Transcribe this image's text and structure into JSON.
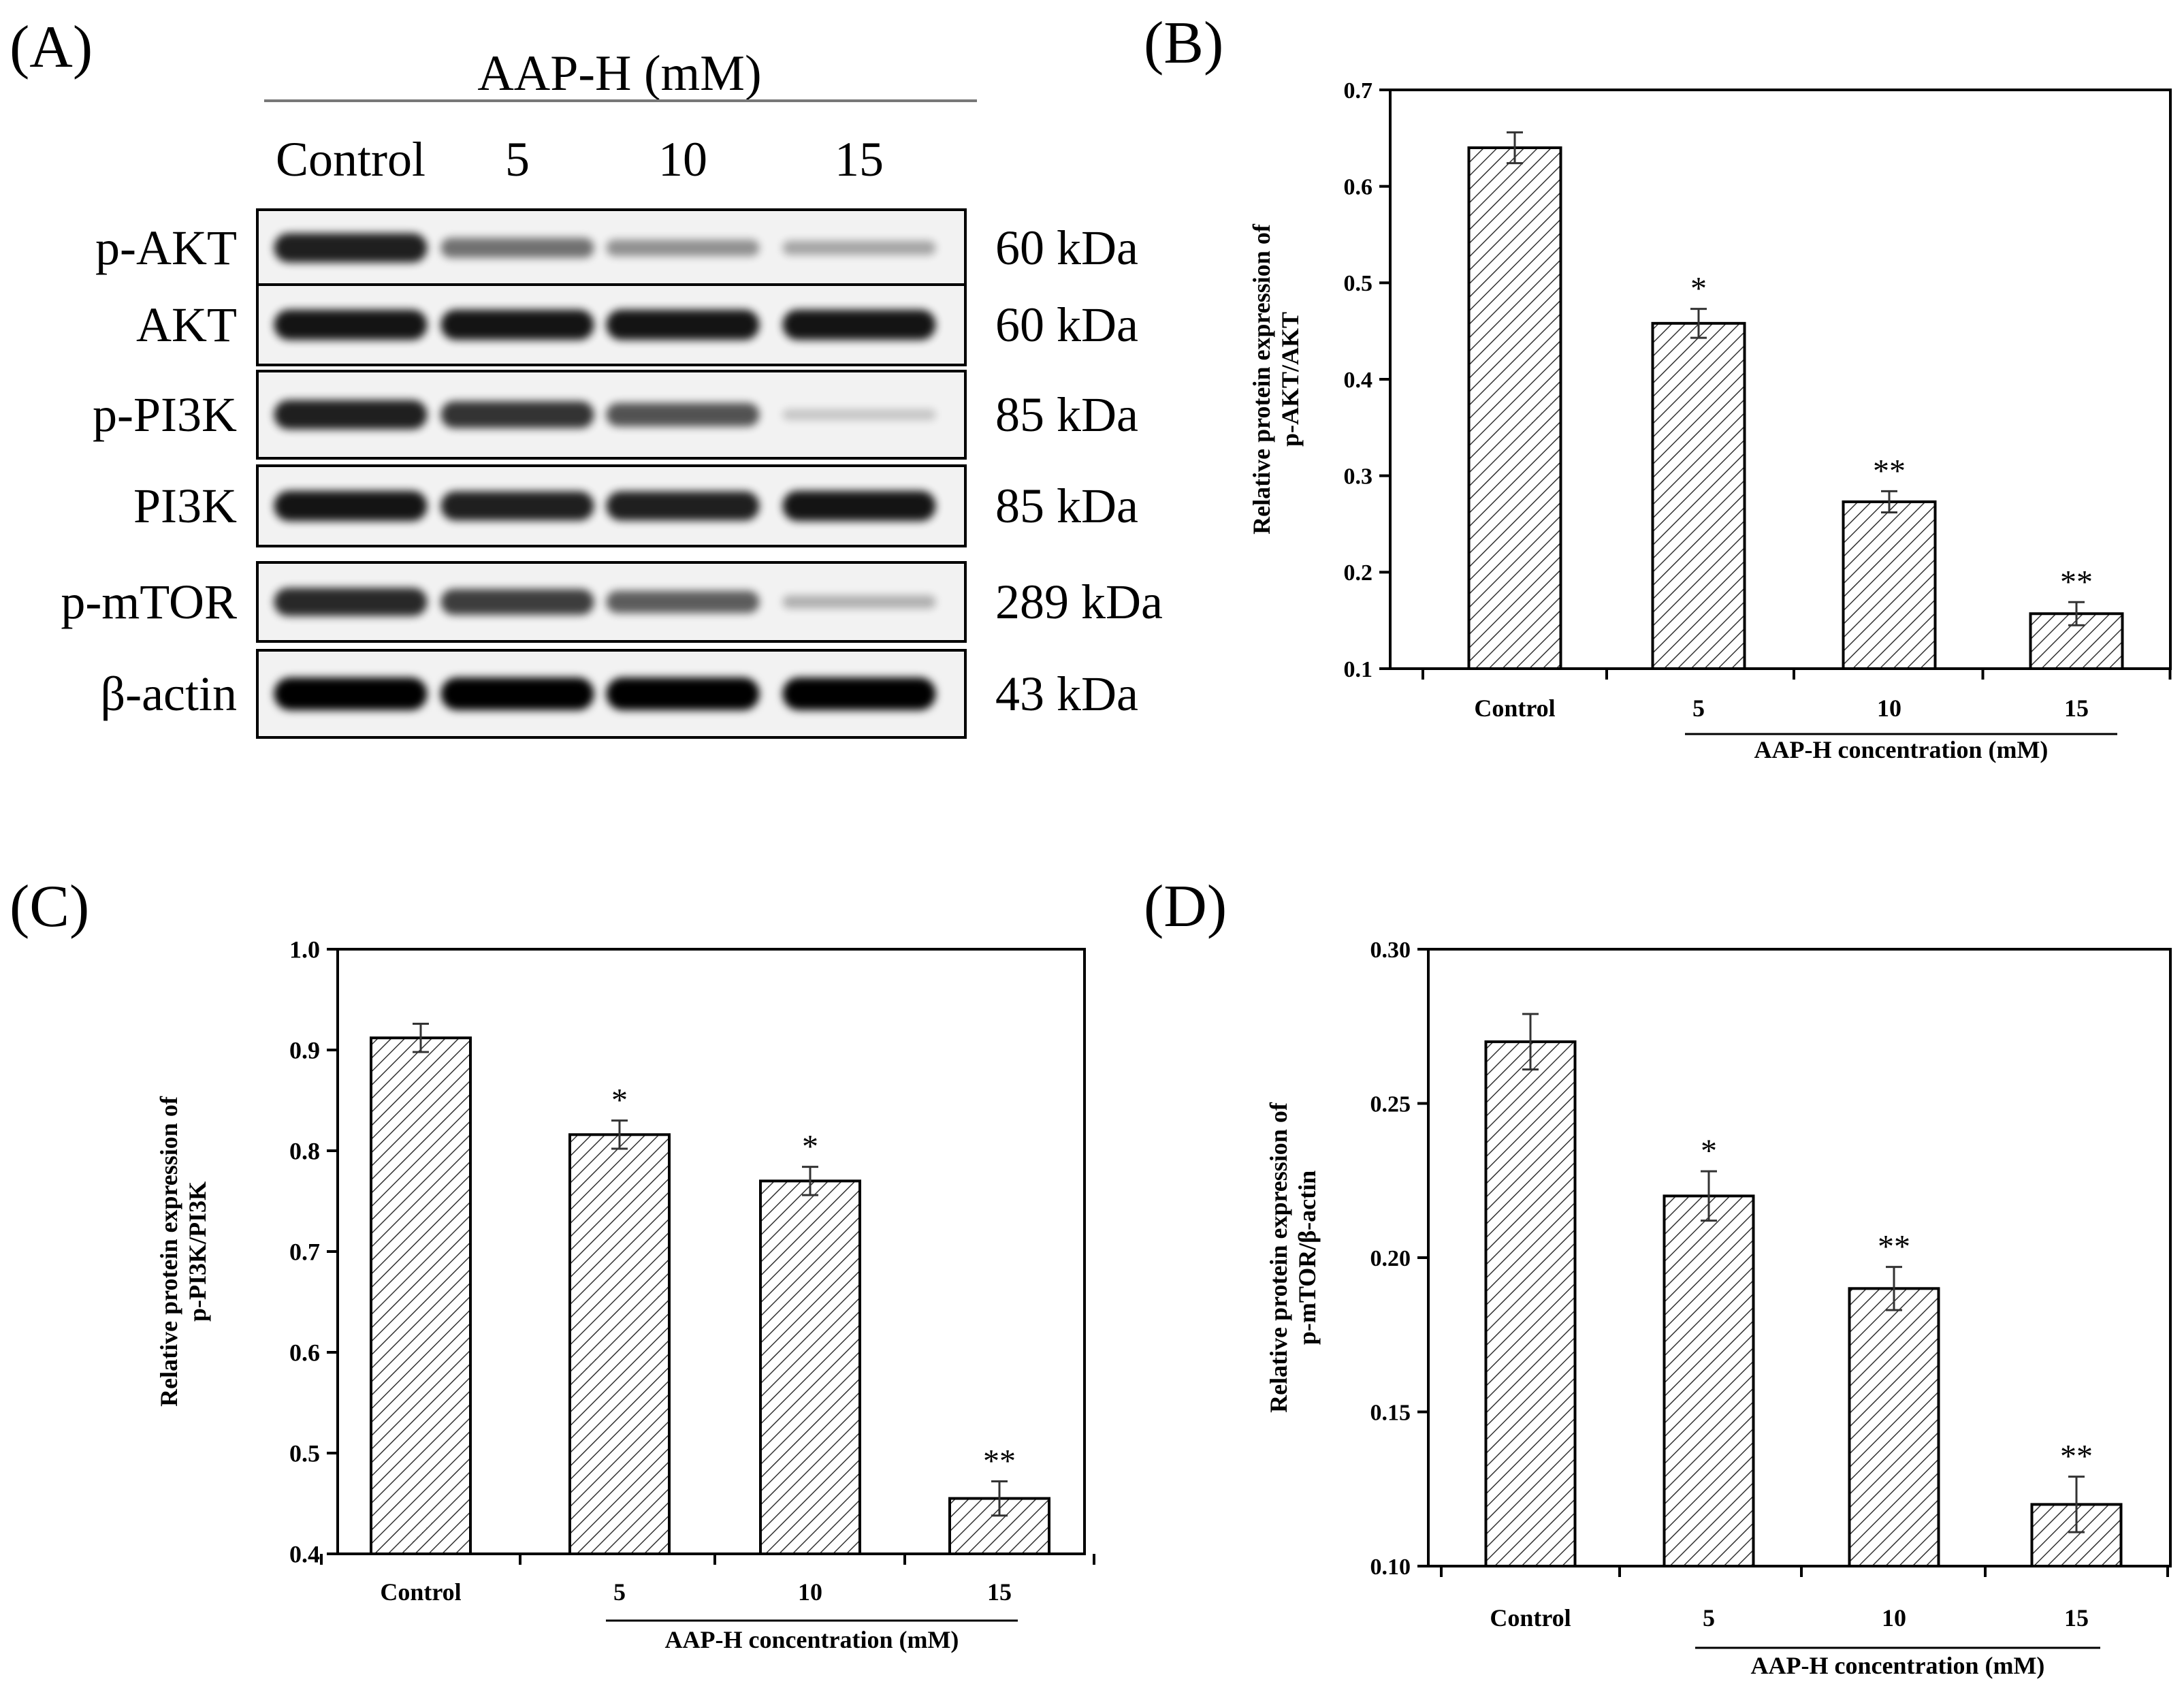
{
  "blot": {
    "panel_label": "(A)",
    "treatment_header": "AAP-H (mM)",
    "lanes": [
      "Control",
      "5",
      "10",
      "15"
    ],
    "rows": [
      {
        "protein": "p-AKT",
        "size": "60 kDa",
        "intensity": [
          0.85,
          0.45,
          0.3,
          0.2
        ]
      },
      {
        "protein": "AKT",
        "size": "60 kDa",
        "intensity": [
          0.9,
          0.9,
          0.9,
          0.9
        ]
      },
      {
        "protein": "p-PI3K",
        "size": "85 kDa",
        "intensity": [
          0.85,
          0.75,
          0.6,
          0.05
        ]
      },
      {
        "protein": "PI3K",
        "size": "85 kDa",
        "intensity": [
          0.9,
          0.85,
          0.85,
          0.9
        ]
      },
      {
        "protein": "p-mTOR",
        "size": "289 kDa",
        "intensity": [
          0.8,
          0.7,
          0.55,
          0.15
        ]
      },
      {
        "protein": "β-actin",
        "size": "43 kDa",
        "intensity": [
          1.0,
          1.0,
          1.0,
          1.0
        ]
      }
    ]
  },
  "chart_data": [
    {
      "panel_label": "(B)",
      "type": "bar",
      "categories": [
        "Control",
        "5",
        "10",
        "15"
      ],
      "values": [
        0.64,
        0.458,
        0.273,
        0.157
      ],
      "errors": [
        0.016,
        0.015,
        0.011,
        0.012
      ],
      "significance": [
        "",
        "*",
        "**",
        "**"
      ],
      "ylabel_lines": [
        "Relative protein expression of",
        "p-AKT/AKT"
      ],
      "xlabel": "AAP-H concentration (mM)",
      "ylim": [
        0.1,
        0.7
      ],
      "yticks": [
        0.1,
        0.2,
        0.3,
        0.4,
        0.5,
        0.6,
        0.7
      ],
      "ytick_labels": [
        "0.1",
        "0.2",
        "0.3",
        "0.4",
        "0.5",
        "0.6",
        "0.7"
      ]
    },
    {
      "panel_label": "(C)",
      "type": "bar",
      "categories": [
        "Control",
        "5",
        "10",
        "15"
      ],
      "values": [
        0.912,
        0.816,
        0.77,
        0.455
      ],
      "errors": [
        0.014,
        0.014,
        0.014,
        0.017
      ],
      "significance": [
        "",
        "*",
        "*",
        "**"
      ],
      "ylabel_lines": [
        "Relative protein expression of",
        "p-PI3K/PI3K"
      ],
      "xlabel": "AAP-H  concentration (mM)",
      "ylim": [
        0.4,
        1.0
      ],
      "yticks": [
        0.4,
        0.5,
        0.6,
        0.7,
        0.8,
        0.9,
        1.0
      ],
      "ytick_labels": [
        "0.4",
        "0.5",
        "0.6",
        "0.7",
        "0.8",
        "0.9",
        "1.0"
      ]
    },
    {
      "panel_label": "(D)",
      "type": "bar",
      "categories": [
        "Control",
        "5",
        "10",
        "15"
      ],
      "values": [
        0.27,
        0.22,
        0.19,
        0.12
      ],
      "errors": [
        0.009,
        0.008,
        0.007,
        0.009
      ],
      "significance": [
        "",
        "*",
        "**",
        "**"
      ],
      "ylabel_lines": [
        "Relative protein expression of",
        "p-mTOR/β-actin"
      ],
      "xlabel": "AAP-H concentration (mM)",
      "ylim": [
        0.1,
        0.3
      ],
      "yticks": [
        0.1,
        0.15,
        0.2,
        0.25,
        0.3
      ],
      "ytick_labels": [
        "0.10",
        "0.15",
        "0.20",
        "0.25",
        "0.30"
      ]
    }
  ]
}
